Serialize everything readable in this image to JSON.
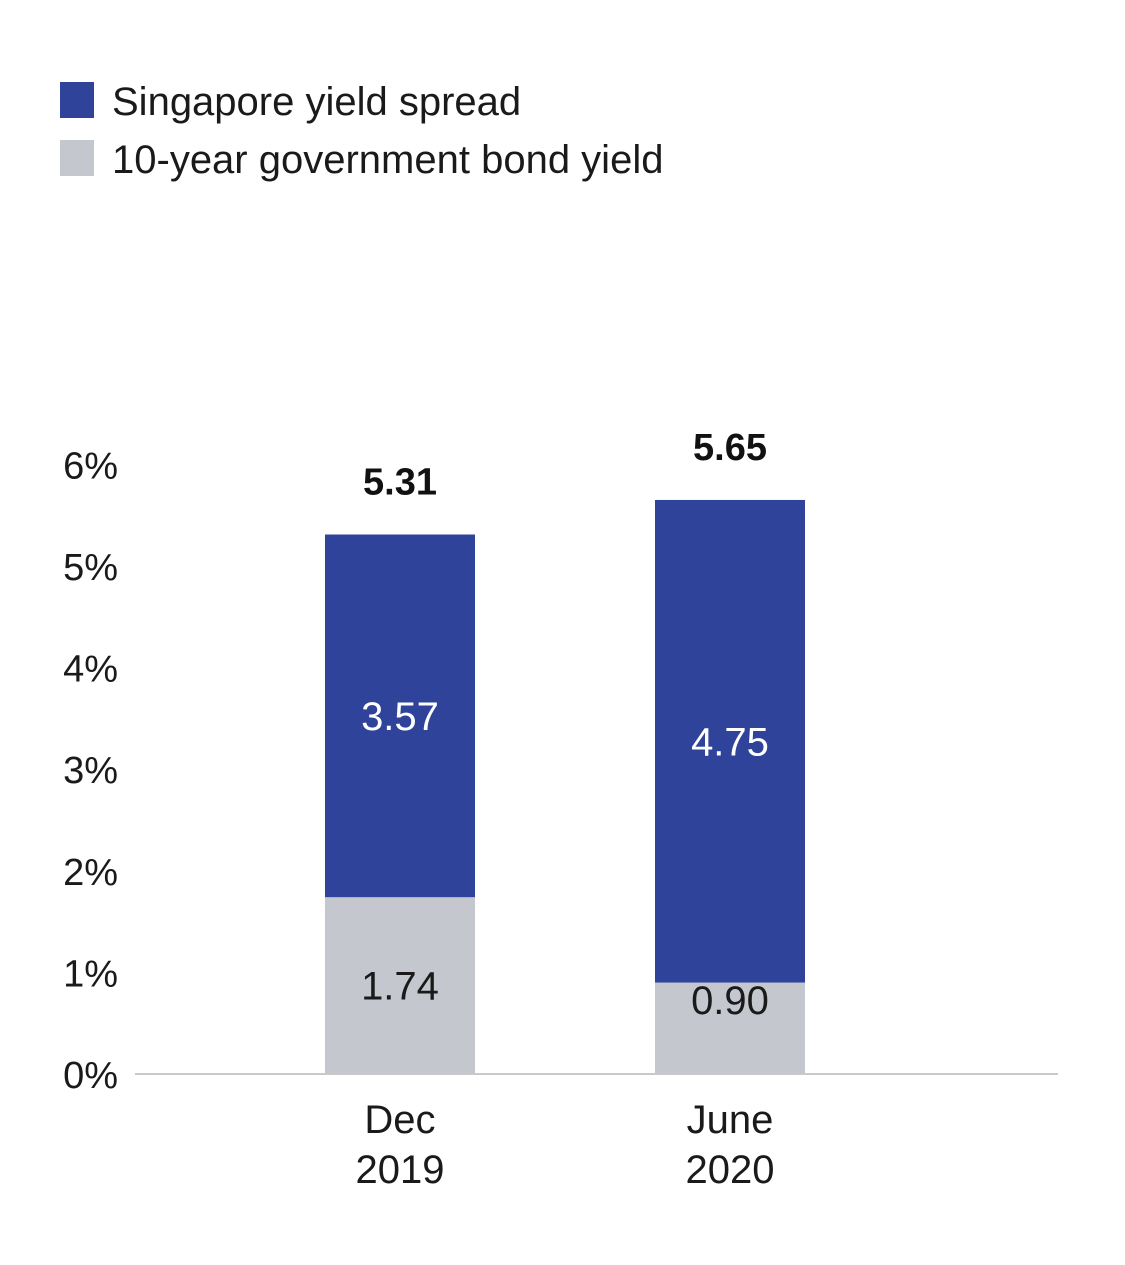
{
  "chart_data": {
    "type": "bar",
    "stacked": true,
    "categories": [
      [
        "Dec",
        "2019"
      ],
      [
        "June",
        "2020"
      ]
    ],
    "series": [
      {
        "name": "10-year government bond yield",
        "color": "#c4c7ce",
        "label_color": "#1a1a1a",
        "values": [
          1.74,
          0.9
        ],
        "labels": [
          "1.74",
          "0.90"
        ]
      },
      {
        "name": "Singapore yield spread",
        "color": "#2e4399",
        "label_color": "#ffffff",
        "values": [
          3.57,
          4.75
        ],
        "labels": [
          "3.57",
          "4.75"
        ]
      }
    ],
    "legend_order": [
      1,
      0
    ],
    "totals": [
      5.31,
      5.65
    ],
    "total_labels": [
      "5.31",
      "5.65"
    ],
    "ylim": [
      0,
      6
    ],
    "yticks": [
      0,
      1,
      2,
      3,
      4,
      5,
      6
    ],
    "ytick_labels": [
      "0%",
      "1%",
      "2%",
      "3%",
      "4%",
      "5%",
      "6%"
    ],
    "legend_position": "top-left",
    "grid": false
  }
}
